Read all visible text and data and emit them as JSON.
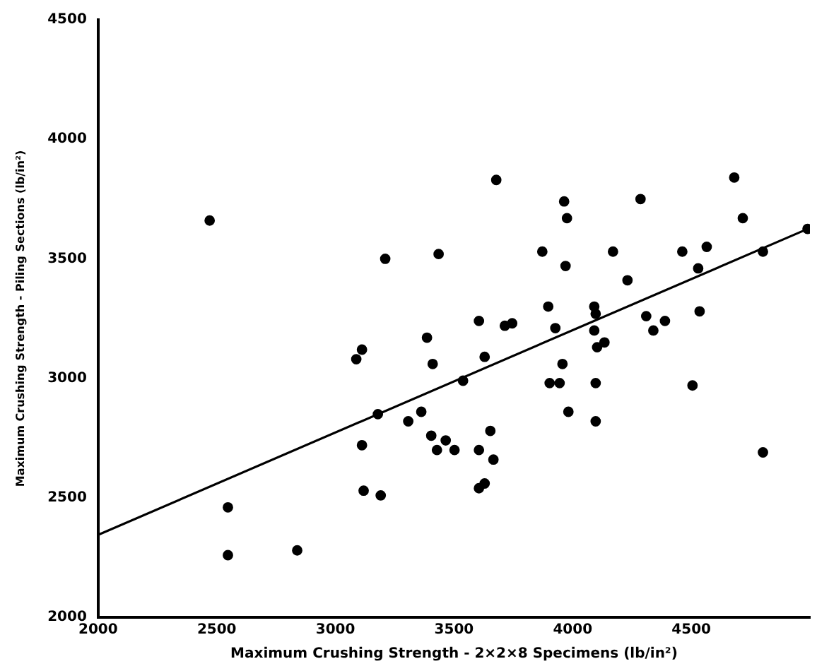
{
  "chart_data": {
    "type": "scatter",
    "xlabel": "Maximum Crushing Strength - 2×2×8 Specimens (lb/in²)",
    "ylabel": "Maximum Crushing Strength - Piling Sections (lb/in²)",
    "xlim": [
      2000,
      5000
    ],
    "xticks": [
      2000,
      2500,
      3000,
      3500,
      4000,
      4500
    ],
    "ylim": [
      2000,
      4500
    ],
    "yticks": [
      2000,
      2500,
      3000,
      3500,
      4000,
      4500
    ],
    "grid": false,
    "legend": false,
    "series": [
      {
        "color": "#000000",
        "marker": "circle",
        "x": [
          2470,
          3210,
          3435,
          3386,
          3410,
          3112,
          3088,
          3179,
          3307,
          3362,
          3404,
          3428,
          3112,
          3119,
          3191,
          3678,
          3964,
          3976,
          3872,
          3970,
          4170,
          4286,
          4231,
          4462,
          4565,
          4681,
          4717,
          4802,
          4990,
          4529,
          4535,
          4091,
          4097,
          4091,
          4103,
          4134,
          4097,
          4097,
          4310,
          4340,
          4389,
          3897,
          3927,
          3957,
          3903,
          3945,
          3982,
          4505,
          4802,
          3605,
          3714,
          3745,
          3629,
          3538,
          3465,
          3502,
          3605,
          3653,
          3666,
          3605,
          3629,
          2547,
          2547,
          2839
        ],
        "values": [
          3660,
          3500,
          3520,
          3170,
          3060,
          3120,
          3080,
          2850,
          2820,
          2860,
          2760,
          2700,
          2720,
          2530,
          2510,
          3830,
          3740,
          3670,
          3530,
          3470,
          3530,
          3750,
          3410,
          3530,
          3550,
          3840,
          3670,
          3530,
          3625,
          3460,
          3280,
          3300,
          3270,
          3200,
          3130,
          3150,
          2980,
          2820,
          3260,
          3200,
          3240,
          3300,
          3210,
          3060,
          2980,
          2980,
          2860,
          2970,
          2690,
          3240,
          3220,
          3230,
          3090,
          2990,
          2740,
          2700,
          2700,
          2780,
          2660,
          2540,
          2560,
          2460,
          2260,
          2280
        ]
      },
      {
        "type": "line",
        "color": "#000000",
        "marker": "none",
        "x": [
          2000,
          4990
        ],
        "values": [
          2345,
          3625
        ]
      }
    ]
  }
}
